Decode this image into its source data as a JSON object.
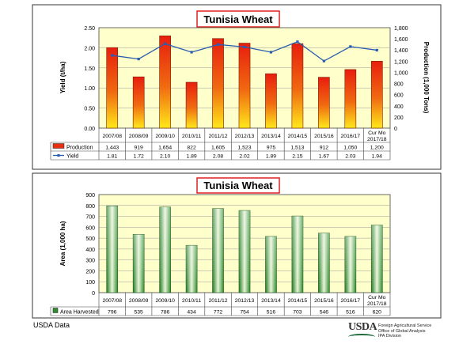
{
  "footer": {
    "source": "USDA Data",
    "logo_text": "USDA",
    "org_lines": [
      "Foreign Agricultural Service",
      "Office of Global Analysis",
      "IPA Division"
    ]
  },
  "chart_data": [
    {
      "type": "bar",
      "title": "Tunisia Wheat",
      "categories": [
        "2007/08",
        "2008/09",
        "2009/10",
        "2010/11",
        "2011/12",
        "2012/13",
        "2013/14",
        "2014/15",
        "2015/16",
        "2016/17",
        "Cur Mo 2017/18"
      ],
      "ylabel": "Yield (t/ha)",
      "y2label": "Production (1,000 Tons)",
      "ylim": [
        0,
        2.5
      ],
      "y2lim": [
        0,
        1800
      ],
      "yticks": [
        "0.00",
        "0.50",
        "1.00",
        "1.50",
        "2.00",
        "2.50"
      ],
      "y2ticks": [
        "0",
        "200",
        "400",
        "600",
        "800",
        "1,000",
        "1,200",
        "1,400",
        "1,600",
        "1,800"
      ],
      "grid": true,
      "series": [
        {
          "name": "Production",
          "type": "bar",
          "axis": "right",
          "values": [
            1443,
            919,
            1654,
            822,
            1605,
            1523,
            975,
            1513,
            912,
            1050,
            1200
          ],
          "labels": [
            "1,443",
            "919",
            "1,654",
            "822",
            "1,605",
            "1,523",
            "975",
            "1,513",
            "912",
            "1,050",
            "1,200"
          ],
          "color": "#e83010"
        },
        {
          "name": "Yield",
          "type": "line",
          "axis": "left",
          "values": [
            1.81,
            1.72,
            2.1,
            1.89,
            2.08,
            2.02,
            1.89,
            2.15,
            1.67,
            2.03,
            1.94
          ],
          "labels": [
            "1.81",
            "1.72",
            "2.10",
            "1.89",
            "2.08",
            "2.02",
            "1.89",
            "2.15",
            "1.67",
            "2.03",
            "1.94"
          ],
          "color": "#2a5db0"
        }
      ]
    },
    {
      "type": "bar",
      "title": "Tunisia Wheat",
      "categories": [
        "2007/08",
        "2008/09",
        "2009/10",
        "2010/11",
        "2011/12",
        "2012/13",
        "2013/14",
        "2014/15",
        "2015/16",
        "2016/17",
        "Cur Mo 2017/18"
      ],
      "ylabel": "Area (1,000 ha)",
      "ylim": [
        0,
        900
      ],
      "yticks": [
        "0",
        "100",
        "200",
        "300",
        "400",
        "500",
        "600",
        "700",
        "800",
        "900"
      ],
      "grid": true,
      "series": [
        {
          "name": "Area Harvested",
          "values": [
            796,
            535,
            786,
            434,
            772,
            754,
            516,
            703,
            546,
            516,
            620
          ],
          "labels": [
            "796",
            "535",
            "786",
            "434",
            "772",
            "754",
            "516",
            "703",
            "546",
            "516",
            "620"
          ],
          "color": "#2e8b2e"
        }
      ]
    }
  ]
}
